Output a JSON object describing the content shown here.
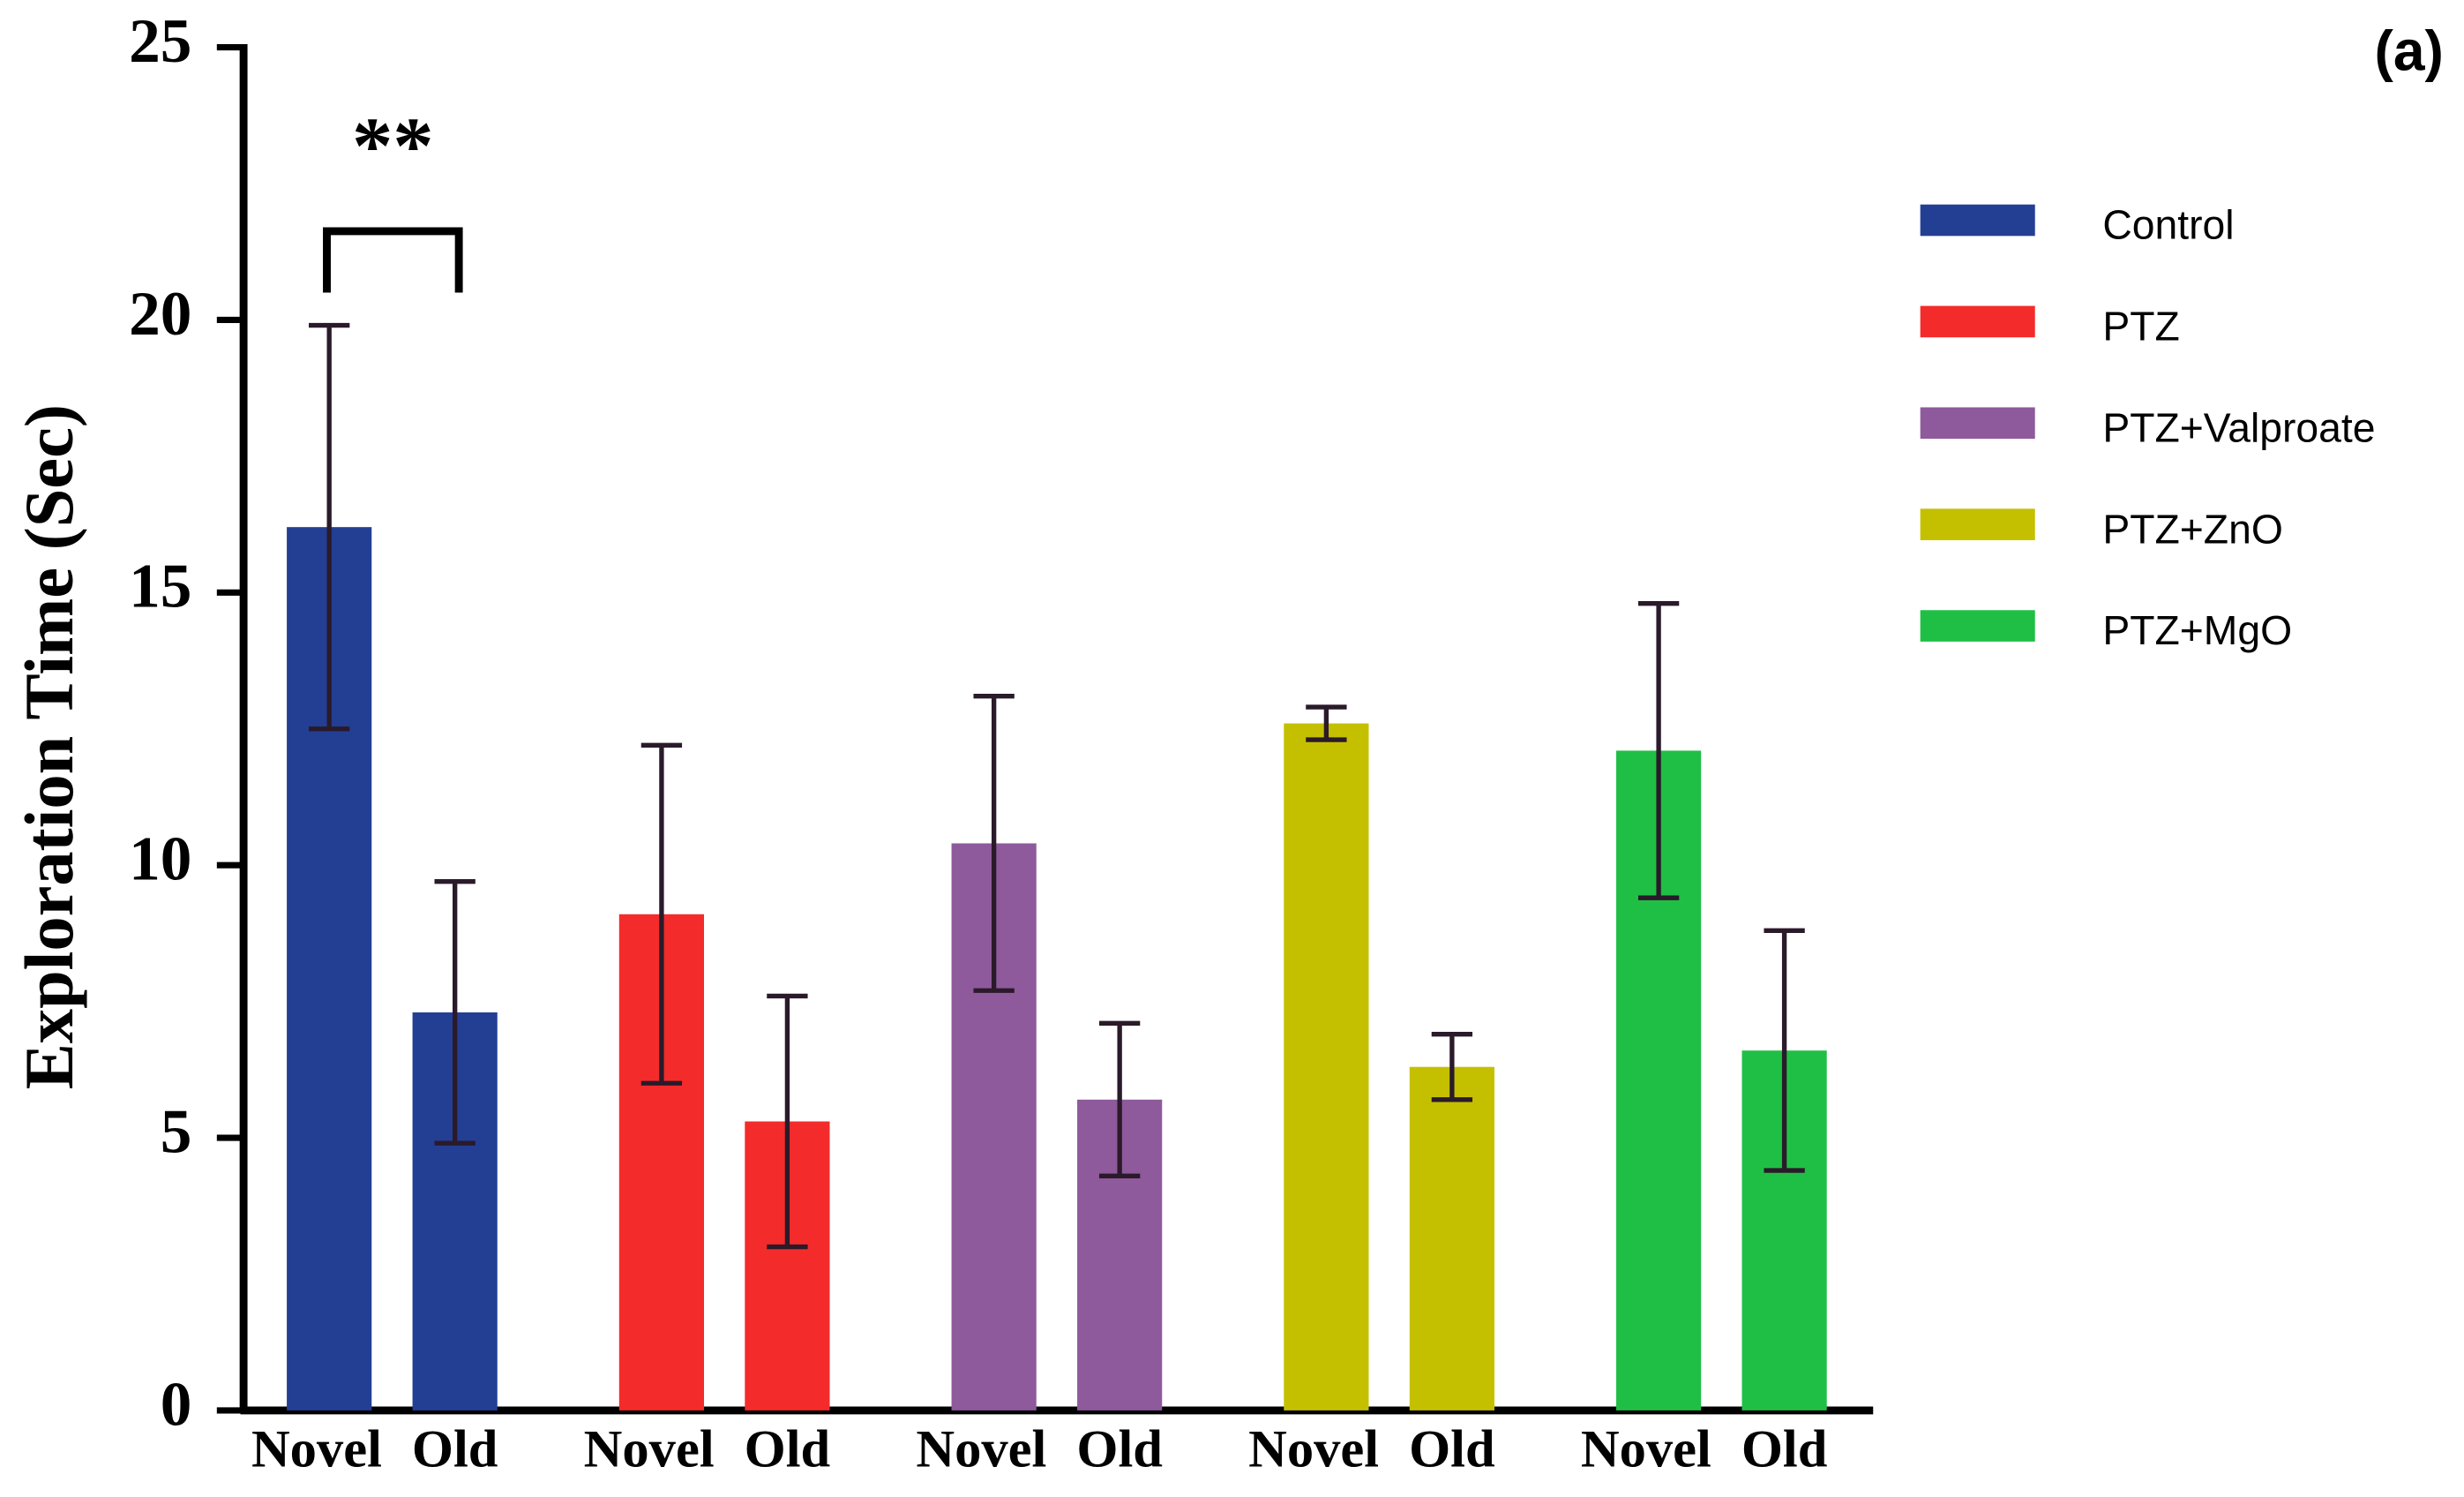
{
  "chart_data": {
    "type": "bar",
    "panel_label": "(a)",
    "ylabel": "Exploration Time (Sec)",
    "annotation": "**",
    "categories": [
      "Novel",
      "Old"
    ],
    "series": [
      {
        "name": "Control",
        "color": "#233f94",
        "values": [
          16.2,
          7.3
        ],
        "errors": [
          3.7,
          2.4
        ]
      },
      {
        "name": "PTZ",
        "color": "#f42b2b",
        "values": [
          9.1,
          5.3
        ],
        "errors": [
          3.1,
          2.3
        ]
      },
      {
        "name": "PTZ+Valproate",
        "color": "#8e5a9c",
        "values": [
          10.4,
          5.7
        ],
        "errors": [
          2.7,
          1.4
        ]
      },
      {
        "name": "PTZ+ZnO",
        "color": "#c4c000",
        "values": [
          12.6,
          6.3
        ],
        "errors": [
          0.3,
          0.6
        ]
      },
      {
        "name": "PTZ+MgO",
        "color": "#1fbf45",
        "values": [
          12.1,
          6.6
        ],
        "errors": [
          2.7,
          2.2
        ]
      }
    ],
    "ylim": [
      0,
      25
    ],
    "yticks": [
      0,
      5,
      10,
      15,
      20,
      25
    ]
  }
}
